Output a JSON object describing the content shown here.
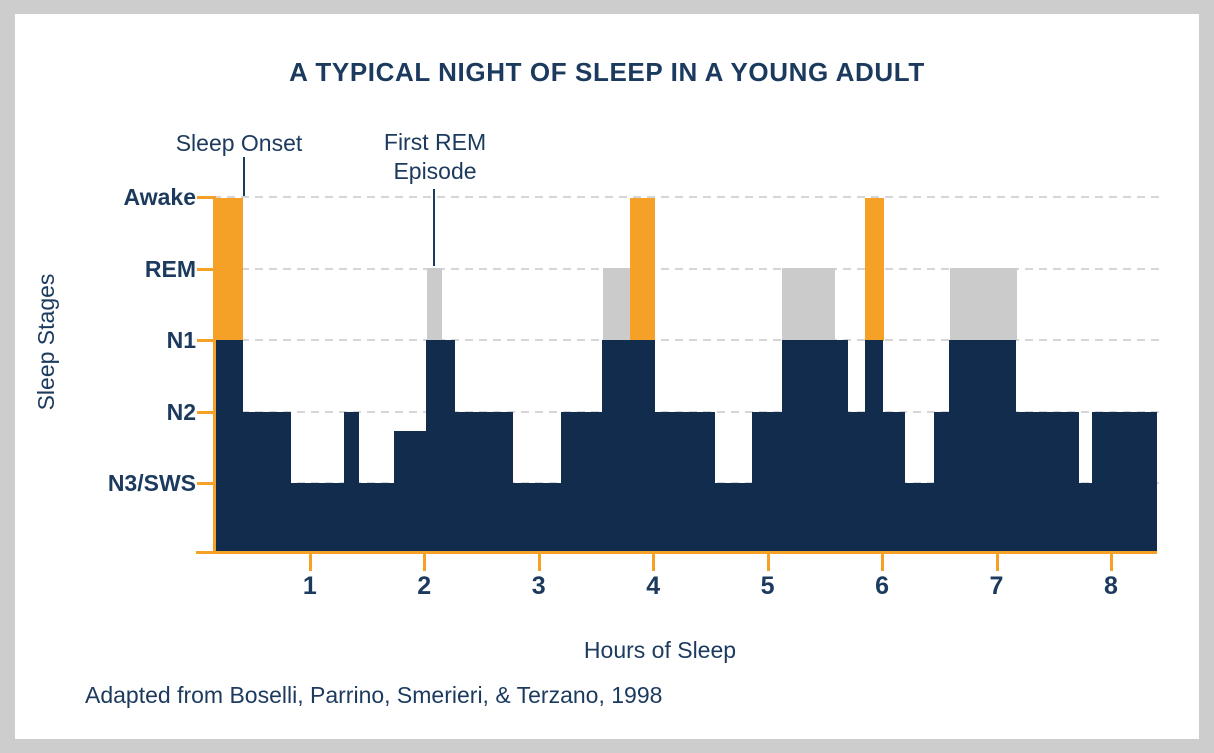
{
  "title": "A TYPICAL NIGHT OF SLEEP IN A YOUNG ADULT",
  "caption": "Adapted from Boselli, Parrino, Smerieri, & Terzano, 1998",
  "annotations": {
    "sleep_onset": "Sleep Onset",
    "first_rem_line1": "First REM",
    "first_rem_line2": "Episode"
  },
  "y_axis": {
    "label": "Sleep Stages",
    "stage_labels": [
      "Awake",
      "REM",
      "N1",
      "N2",
      "N3/SWS"
    ]
  },
  "x_axis": {
    "label": "Hours of Sleep",
    "tick_labels": [
      "1",
      "2",
      "3",
      "4",
      "5",
      "6",
      "7",
      "8"
    ]
  },
  "colors": {
    "navy": "#112C4D",
    "text_navy": "#1B3A5E",
    "orange": "#F5A127",
    "rem_gray": "#CBCBCB",
    "grid_gray": "#D6D6D6",
    "frame_gray": "#CDCDCD"
  },
  "chart_data": {
    "type": "area",
    "subtype": "hypnogram-step",
    "title": "A TYPICAL NIGHT OF SLEEP IN A YOUNG ADULT",
    "xlabel": "Hours of Sleep",
    "ylabel": "Sleep Stages",
    "x_unit": "hours",
    "x_range": [
      0.17,
      8.4
    ],
    "x_ticks": [
      1,
      2,
      3,
      4,
      5,
      6,
      7,
      8
    ],
    "grid": "dashed horizontal line at each sleep stage",
    "legend_position": "none",
    "stage_scale": {
      "Awake": 0,
      "REM": 1,
      "N1": 2,
      "N2": 3,
      "N3/SWS": 4
    },
    "render_rules": {
      "awake": "orange bar from Awake level down to N1 level, navy below N1 to baseline",
      "rem": "gray bar from REM level down to N1 level, navy below N1 to baseline",
      "other": "navy fill from stage level down to baseline"
    },
    "stage_sequence": [
      {
        "from": 0.17,
        "to": 0.41,
        "stage": "Awake"
      },
      {
        "from": 0.41,
        "to": 0.83,
        "stage": "N2"
      },
      {
        "from": 0.83,
        "to": 1.3,
        "stage": "N3/SWS"
      },
      {
        "from": 1.3,
        "to": 1.43,
        "stage": "N2"
      },
      {
        "from": 1.43,
        "to": 1.74,
        "stage": "N3/SWS"
      },
      {
        "from": 1.74,
        "to": 2.02,
        "stage": "N2",
        "level": 3.27
      },
      {
        "from": 2.02,
        "to": 2.15,
        "stage": "REM"
      },
      {
        "from": 2.15,
        "to": 2.27,
        "stage": "N1"
      },
      {
        "from": 2.27,
        "to": 2.77,
        "stage": "N2"
      },
      {
        "from": 2.77,
        "to": 3.2,
        "stage": "N3/SWS"
      },
      {
        "from": 3.2,
        "to": 3.56,
        "stage": "N2"
      },
      {
        "from": 3.56,
        "to": 3.8,
        "stage": "REM"
      },
      {
        "from": 3.8,
        "to": 4.01,
        "stage": "Awake"
      },
      {
        "from": 4.01,
        "to": 4.54,
        "stage": "N2"
      },
      {
        "from": 4.54,
        "to": 4.87,
        "stage": "N3/SWS"
      },
      {
        "from": 4.87,
        "to": 5.13,
        "stage": "N2"
      },
      {
        "from": 5.13,
        "to": 5.58,
        "stage": "REM"
      },
      {
        "from": 5.58,
        "to": 5.7,
        "stage": "N1"
      },
      {
        "from": 5.7,
        "to": 5.85,
        "stage": "N2"
      },
      {
        "from": 5.85,
        "to": 6.01,
        "stage": "Awake"
      },
      {
        "from": 6.01,
        "to": 6.2,
        "stage": "N2"
      },
      {
        "from": 6.2,
        "to": 6.46,
        "stage": "N3/SWS"
      },
      {
        "from": 6.46,
        "to": 6.59,
        "stage": "N2"
      },
      {
        "from": 6.59,
        "to": 7.17,
        "stage": "REM"
      },
      {
        "from": 7.17,
        "to": 7.72,
        "stage": "N2"
      },
      {
        "from": 7.72,
        "to": 7.84,
        "stage": "N3/SWS"
      },
      {
        "from": 7.84,
        "to": 8.4,
        "stage": "N2"
      }
    ],
    "annotated_points": [
      {
        "label": "Sleep Onset",
        "hour": 0.42,
        "stage": "Awake"
      },
      {
        "label": "First REM Episode",
        "hour": 2.08,
        "stage": "REM"
      }
    ]
  }
}
